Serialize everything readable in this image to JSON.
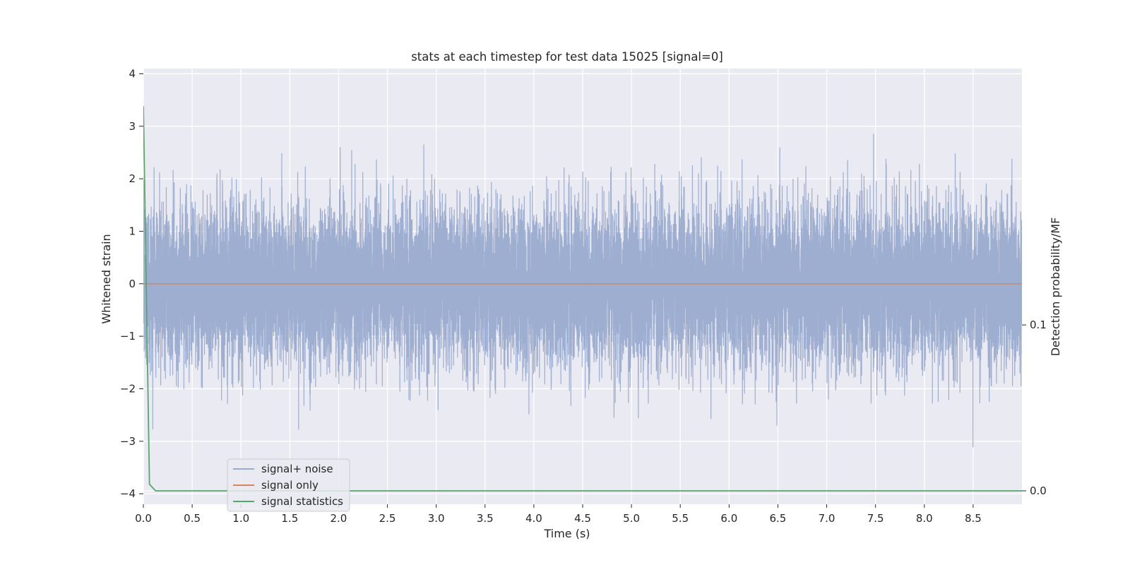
{
  "chart_data": {
    "type": "line",
    "title": "stats at each timestep for test data 15025 [signal=0]",
    "xlabel": "Time (s)",
    "ylabel": "Whitened strain",
    "y2label": "Detection probability/MF",
    "xlim": [
      0.0,
      9.0
    ],
    "ylim": [
      -4.2,
      4.1
    ],
    "y2lim": [
      -0.0081,
      0.2546
    ],
    "x_ticks": [
      0.0,
      0.5,
      1.0,
      1.5,
      2.0,
      2.5,
      3.0,
      3.5,
      4.0,
      4.5,
      5.0,
      5.5,
      6.0,
      6.5,
      7.0,
      7.5,
      8.0,
      8.5
    ],
    "x_tick_labels": [
      "0.0",
      "0.5",
      "1.0",
      "1.5",
      "2.0",
      "2.5",
      "3.0",
      "3.5",
      "4.0",
      "4.5",
      "5.0",
      "5.5",
      "6.0",
      "6.5",
      "7.0",
      "7.5",
      "8.0",
      "8.5"
    ],
    "y_ticks": [
      4,
      3,
      2,
      1,
      0,
      -1,
      -2,
      -3,
      -4
    ],
    "y_tick_labels": [
      "4",
      "3",
      "2",
      "1",
      "0",
      "−1",
      "−2",
      "−3",
      "−4"
    ],
    "y2_ticks": [
      0.1,
      0.0
    ],
    "y2_tick_labels": [
      "0.1",
      "0.0"
    ],
    "grid": true,
    "legend_position": "lower-left",
    "series": [
      {
        "name": "signal+ noise",
        "axis": "left",
        "color": "#9aabcf",
        "kind": "noise",
        "x_range": [
          0.0,
          9.0
        ],
        "std": 0.95,
        "sample_rate": 2048
      },
      {
        "name": "signal only",
        "axis": "left",
        "color": "#dd8452",
        "x": [
          0.0,
          9.0
        ],
        "values": [
          0.0,
          0.0
        ]
      },
      {
        "name": "signal statistics",
        "axis": "right",
        "color": "#55a868",
        "x": [
          0.0,
          0.0625,
          0.125,
          0.1875,
          0.25,
          0.5,
          1.0,
          2.0,
          3.0,
          4.0,
          5.0,
          6.0,
          7.0,
          8.0,
          9.0
        ],
        "values": [
          0.232,
          0.004,
          0.0,
          0.0,
          0.0,
          0.0,
          0.0,
          0.0,
          0.0,
          0.0,
          0.0,
          0.0,
          0.0,
          0.0,
          0.0
        ]
      }
    ]
  },
  "colors": {
    "plot_background": "#eaeaf2",
    "grid": "#ffffff",
    "text": "#262626"
  }
}
